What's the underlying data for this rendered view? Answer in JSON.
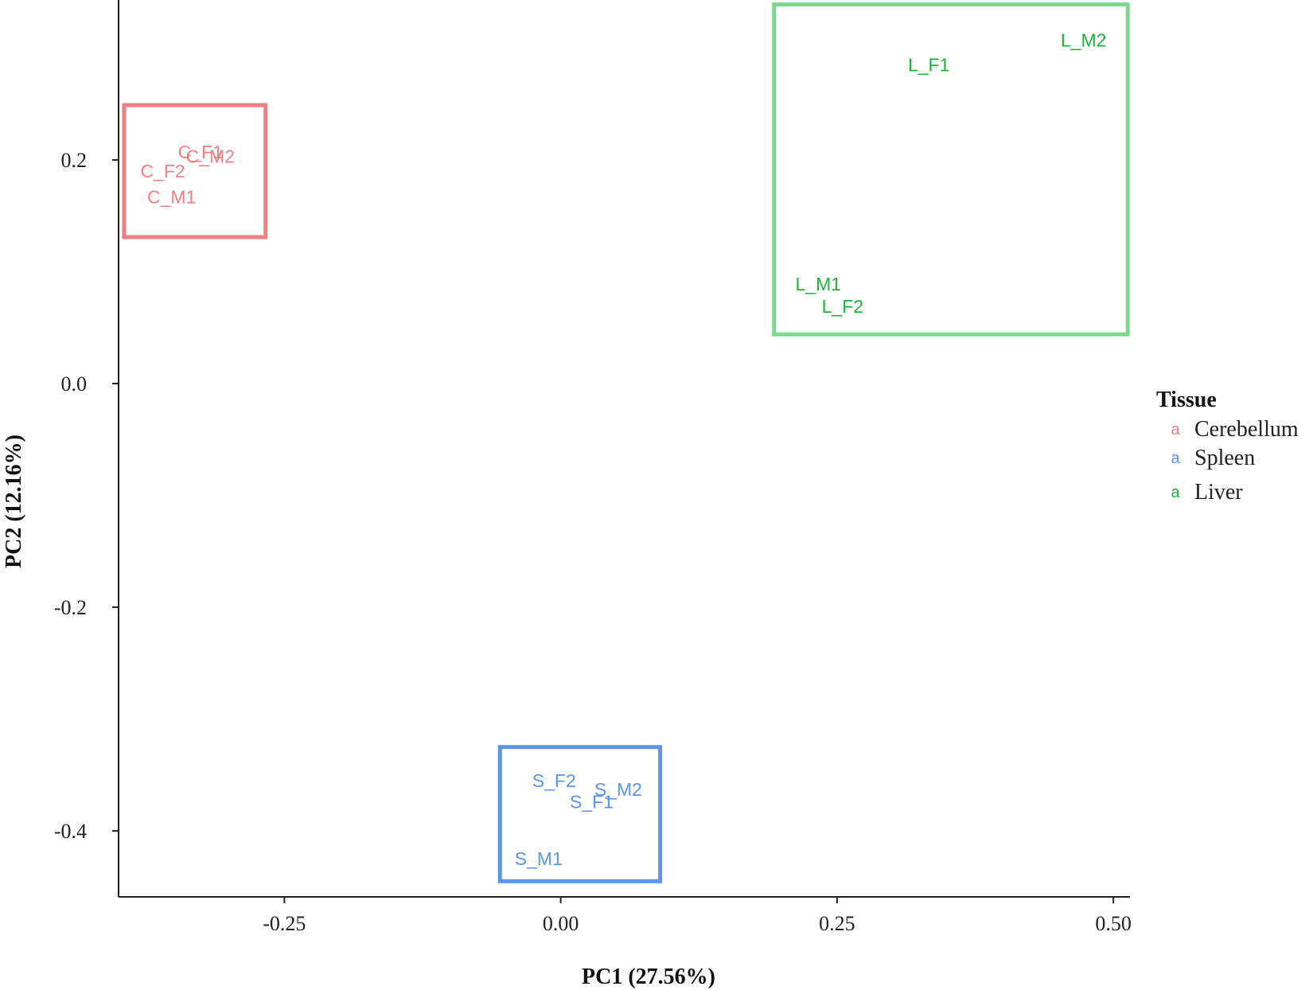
{
  "chart_data": {
    "type": "scatter",
    "xlabel": "PC1 (27.56%)",
    "ylabel": "PC2 (12.16%)",
    "xlim": [
      -0.4,
      0.515
    ],
    "ylim": [
      -0.459,
      0.343
    ],
    "x_ticks": [
      {
        "value": -0.25,
        "label": "-0.25"
      },
      {
        "value": 0.0,
        "label": "0.00"
      },
      {
        "value": 0.25,
        "label": "0.25"
      },
      {
        "value": 0.5,
        "label": "0.50"
      }
    ],
    "y_ticks": [
      {
        "value": 0.2,
        "label": "0.2"
      },
      {
        "value": 0.0,
        "label": "0.0"
      },
      {
        "value": -0.2,
        "label": "-0.2"
      },
      {
        "value": -0.4,
        "label": "-0.4"
      }
    ],
    "grid": false,
    "legend": {
      "title": "Tissue",
      "placement": "right",
      "key_glyph": "a"
    },
    "series": [
      {
        "name": "Cerebellum",
        "color": "#F08080",
        "box": {
          "x": [
            -0.395,
            -0.267
          ],
          "y": [
            0.131,
            0.249
          ]
        },
        "points": [
          {
            "label": "C_F1",
            "x": -0.326,
            "y": 0.207
          },
          {
            "label": "C_M2",
            "x": -0.317,
            "y": 0.203
          },
          {
            "label": "C_F2",
            "x": -0.36,
            "y": 0.19
          },
          {
            "label": "C_M1",
            "x": -0.352,
            "y": 0.167
          }
        ]
      },
      {
        "name": "Spleen",
        "color": "#5B95E8",
        "box": {
          "x": [
            -0.055,
            0.09
          ],
          "y": [
            -0.445,
            -0.325
          ]
        },
        "points": [
          {
            "label": "S_F2",
            "x": -0.006,
            "y": -0.355
          },
          {
            "label": "S_M2",
            "x": 0.052,
            "y": -0.363
          },
          {
            "label": "S_F1",
            "x": 0.028,
            "y": -0.374
          },
          {
            "label": "S_M1",
            "x": -0.02,
            "y": -0.425
          }
        ]
      },
      {
        "name": "Liver",
        "color": "#1BB33A",
        "box_color": "#7CD98C",
        "box": {
          "x": [
            0.193,
            0.513
          ],
          "y": [
            0.044,
            0.339
          ]
        },
        "points": [
          {
            "label": "L_M2",
            "x": 0.473,
            "y": 0.307
          },
          {
            "label": "L_F1",
            "x": 0.333,
            "y": 0.285
          },
          {
            "label": "L_M1",
            "x": 0.233,
            "y": 0.089
          },
          {
            "label": "L_F2",
            "x": 0.255,
            "y": 0.069
          }
        ]
      }
    ]
  }
}
